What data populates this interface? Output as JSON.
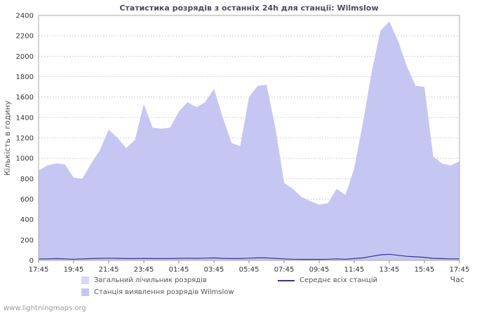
{
  "page": {
    "watermark": "www.lightningmaps.org"
  },
  "chart_data": {
    "type": "area",
    "title": "Статистика розрядів з останніх 24h для станції: Wilmslow",
    "ylabel": "Кількість в годину",
    "xlabel": "Час",
    "ylim": [
      0,
      2400
    ],
    "y_tick_step": 200,
    "x_tick_every": 4,
    "x_tick_labels": [
      "17:45",
      "19:45",
      "21:45",
      "23:45",
      "01:45",
      "03:45",
      "05:45",
      "07:45",
      "09:45",
      "11:45",
      "13:45",
      "15:45",
      "17:45"
    ],
    "grid": "horizontal-dotted",
    "legend_position": "bottom",
    "series": [
      {
        "name": "Загальний лічильник розрядів",
        "type": "area",
        "color": "#d6d6f8",
        "values": [
          880,
          930,
          950,
          940,
          810,
          800,
          950,
          1080,
          1280,
          1200,
          1100,
          1180,
          1530,
          1300,
          1290,
          1300,
          1460,
          1550,
          1500,
          1550,
          1680,
          1400,
          1150,
          1120,
          1600,
          1710,
          1720,
          1300,
          760,
          700,
          620,
          580,
          545,
          560,
          700,
          640,
          900,
          1350,
          1850,
          2250,
          2340,
          2150,
          1900,
          1710,
          1700,
          1020,
          950,
          930,
          970
        ]
      },
      {
        "name": "Станція виявлення розрядів Wilmslow",
        "type": "area",
        "color": "#c6c6f3",
        "values": [
          880,
          930,
          950,
          940,
          810,
          800,
          950,
          1080,
          1280,
          1200,
          1100,
          1180,
          1530,
          1300,
          1290,
          1300,
          1460,
          1550,
          1500,
          1550,
          1680,
          1400,
          1150,
          1120,
          1600,
          1710,
          1720,
          1300,
          760,
          700,
          620,
          580,
          545,
          560,
          700,
          640,
          900,
          1350,
          1850,
          2250,
          2340,
          2150,
          1900,
          1710,
          1700,
          1020,
          950,
          930,
          970
        ]
      },
      {
        "name": "Середнє всіх станцій",
        "type": "line",
        "color": "#333399",
        "values": [
          15,
          15,
          18,
          15,
          12,
          15,
          18,
          20,
          22,
          20,
          18,
          18,
          20,
          18,
          18,
          18,
          20,
          22,
          20,
          22,
          25,
          20,
          18,
          18,
          22,
          25,
          25,
          20,
          15,
          12,
          10,
          10,
          10,
          12,
          15,
          12,
          18,
          25,
          40,
          55,
          60,
          50,
          40,
          35,
          30,
          20,
          18,
          15,
          15
        ]
      }
    ]
  }
}
